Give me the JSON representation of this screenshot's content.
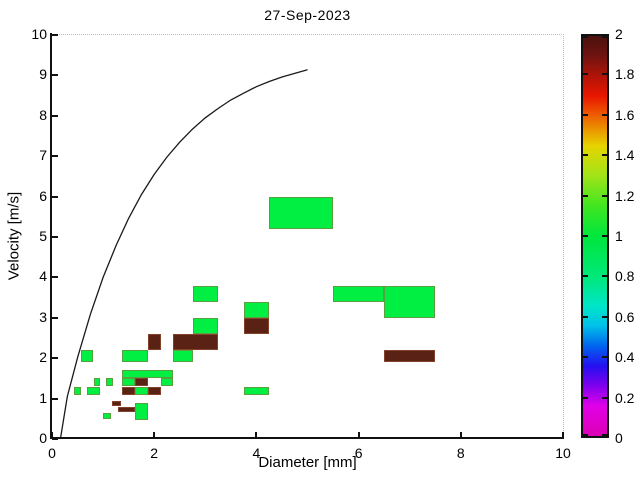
{
  "chart_data": {
    "type": "heatmap",
    "title": "27-Sep-2023",
    "xlabel": "Diameter [mm]",
    "ylabel": "Velocity [m/s]",
    "xlim": [
      0,
      10
    ],
    "ylim": [
      0,
      10
    ],
    "grid": false,
    "xticks": [
      0,
      2,
      4,
      6,
      8,
      10
    ],
    "yticks": [
      0,
      1,
      2,
      3,
      4,
      5,
      6,
      7,
      8,
      9,
      10
    ],
    "value_colors": {
      "1": "#00ef42",
      "2": "#5a2214"
    },
    "cells": [
      {
        "d": [
          0.437,
          0.562
        ],
        "v": [
          1.1,
          1.3
        ],
        "n": 1
      },
      {
        "d": [
          0.687,
          0.937
        ],
        "v": [
          1.1,
          1.3
        ],
        "n": 1
      },
      {
        "d": [
          0.812,
          0.937
        ],
        "v": [
          1.3,
          1.5
        ],
        "n": 1
      },
      {
        "d": [
          1.062,
          1.187
        ],
        "v": [
          1.3,
          1.5
        ],
        "n": 1
      },
      {
        "d": [
          0.562,
          0.812
        ],
        "v": [
          1.9,
          2.2
        ],
        "n": 1
      },
      {
        "d": [
          1.0,
          1.15
        ],
        "v": [
          0.5,
          0.65
        ],
        "n": 1
      },
      {
        "d": [
          1.17,
          1.36
        ],
        "v": [
          0.82,
          0.95
        ],
        "n": 2
      },
      {
        "d": [
          1.3,
          1.62
        ],
        "v": [
          0.66,
          0.8
        ],
        "n": 2
      },
      {
        "d": [
          1.62,
          1.88
        ],
        "v": [
          0.48,
          0.88
        ],
        "n": 1
      },
      {
        "d": [
          1.375,
          2.375
        ],
        "v": [
          1.5,
          1.7
        ],
        "n": 1
      },
      {
        "d": [
          1.375,
          1.625
        ],
        "v": [
          1.3,
          1.5
        ],
        "n": 1
      },
      {
        "d": [
          1.625,
          1.875
        ],
        "v": [
          1.3,
          1.5
        ],
        "n": 2
      },
      {
        "d": [
          2.125,
          2.375
        ],
        "v": [
          1.3,
          1.5
        ],
        "n": 1
      },
      {
        "d": [
          1.375,
          1.625
        ],
        "v": [
          1.1,
          1.3
        ],
        "n": 2
      },
      {
        "d": [
          1.625,
          1.875
        ],
        "v": [
          1.1,
          1.3
        ],
        "n": 1
      },
      {
        "d": [
          1.875,
          2.125
        ],
        "v": [
          1.1,
          1.3
        ],
        "n": 2
      },
      {
        "d": [
          1.375,
          1.875
        ],
        "v": [
          1.9,
          2.2
        ],
        "n": 1
      },
      {
        "d": [
          1.875,
          2.125
        ],
        "v": [
          2.2,
          2.6
        ],
        "n": 2
      },
      {
        "d": [
          2.375,
          2.75
        ],
        "v": [
          1.9,
          2.2
        ],
        "n": 1
      },
      {
        "d": [
          2.375,
          3.25
        ],
        "v": [
          2.2,
          2.6
        ],
        "n": 2
      },
      {
        "d": [
          2.75,
          3.25
        ],
        "v": [
          2.6,
          3.0
        ],
        "n": 1
      },
      {
        "d": [
          2.75,
          3.25
        ],
        "v": [
          3.4,
          3.8
        ],
        "n": 1
      },
      {
        "d": [
          3.75,
          4.25
        ],
        "v": [
          2.6,
          3.0
        ],
        "n": 2
      },
      {
        "d": [
          3.75,
          4.25
        ],
        "v": [
          3.0,
          3.4
        ],
        "n": 1
      },
      {
        "d": [
          3.75,
          4.25
        ],
        "v": [
          1.1,
          1.3
        ],
        "n": 1
      },
      {
        "d": [
          4.25,
          5.5
        ],
        "v": [
          5.2,
          6.0
        ],
        "n": 1
      },
      {
        "d": [
          5.5,
          6.5
        ],
        "v": [
          3.4,
          3.8
        ],
        "n": 1
      },
      {
        "d": [
          6.5,
          7.5
        ],
        "v": [
          3.0,
          3.8
        ],
        "n": 1
      },
      {
        "d": [
          6.5,
          7.5
        ],
        "v": [
          1.9,
          2.2
        ],
        "n": 2
      }
    ],
    "curve": {
      "name": "terminal-fall-velocity-curve",
      "color": "#1a1a1a",
      "points": [
        [
          0.165,
          0.0
        ],
        [
          0.3,
          1.05
        ],
        [
          0.5,
          2.02
        ],
        [
          0.75,
          3.08
        ],
        [
          1.0,
          4.0
        ],
        [
          1.25,
          4.78
        ],
        [
          1.5,
          5.46
        ],
        [
          1.75,
          6.05
        ],
        [
          2.0,
          6.55
        ],
        [
          2.25,
          6.98
        ],
        [
          2.5,
          7.35
        ],
        [
          2.75,
          7.67
        ],
        [
          3.0,
          7.95
        ],
        [
          3.25,
          8.18
        ],
        [
          3.5,
          8.39
        ],
        [
          3.75,
          8.56
        ],
        [
          4.0,
          8.72
        ],
        [
          4.25,
          8.85
        ],
        [
          4.5,
          8.96
        ],
        [
          4.75,
          9.05
        ],
        [
          5.0,
          9.14
        ]
      ]
    },
    "colorbar": {
      "min": 0,
      "max": 2,
      "tick_values": [
        0,
        0.2,
        0.4,
        0.6,
        0.8,
        1,
        1.2,
        1.4,
        1.6,
        1.8,
        2
      ],
      "tick_labels": [
        "0",
        "0.2",
        "0.4",
        "0.6",
        "0.8",
        "1",
        "1.2",
        "1.4",
        "1.6",
        "1.8",
        "2"
      ],
      "gradient": [
        {
          "v": 0.0,
          "c": "#dc00b4"
        },
        {
          "v": 0.15,
          "c": "#e000e8"
        },
        {
          "v": 0.25,
          "c": "#8000ee"
        },
        {
          "v": 0.35,
          "c": "#2410f0"
        },
        {
          "v": 0.45,
          "c": "#0064ee"
        },
        {
          "v": 0.55,
          "c": "#00c0ea"
        },
        {
          "v": 0.65,
          "c": "#00e6c8"
        },
        {
          "v": 0.8,
          "c": "#00e878"
        },
        {
          "v": 1.0,
          "c": "#00e63c"
        },
        {
          "v": 1.15,
          "c": "#40e620"
        },
        {
          "v": 1.3,
          "c": "#a0e418"
        },
        {
          "v": 1.45,
          "c": "#e6d400"
        },
        {
          "v": 1.6,
          "c": "#ee6000"
        },
        {
          "v": 1.7,
          "c": "#e81600"
        },
        {
          "v": 1.8,
          "c": "#b01408"
        },
        {
          "v": 1.9,
          "c": "#701310"
        },
        {
          "v": 2.0,
          "c": "#4a120e"
        }
      ]
    }
  }
}
